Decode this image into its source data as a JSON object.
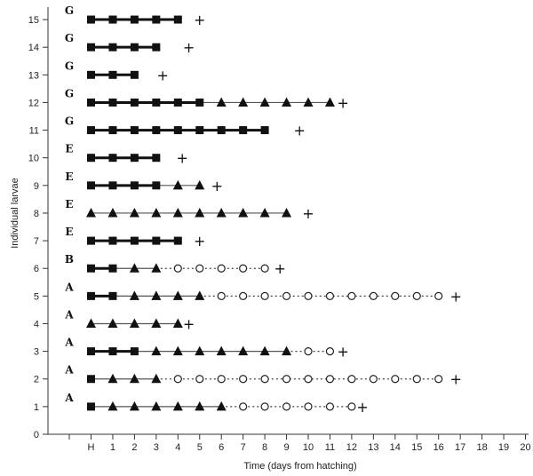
{
  "chart_data": {
    "type": "scatter",
    "title": "",
    "xlabel": "Time (days from hatching)",
    "ylabel": "Individual larvae",
    "xlim": [
      -1,
      20
    ],
    "ylim": [
      0,
      15
    ],
    "x_ticks": [
      {
        "value": 0,
        "label": "H"
      },
      {
        "value": 1,
        "label": "1"
      },
      {
        "value": 2,
        "label": "2"
      },
      {
        "value": 3,
        "label": "3"
      },
      {
        "value": 4,
        "label": "4"
      },
      {
        "value": 5,
        "label": "5"
      },
      {
        "value": 6,
        "label": "6"
      },
      {
        "value": 7,
        "label": "7"
      },
      {
        "value": 8,
        "label": "8"
      },
      {
        "value": 9,
        "label": "9"
      },
      {
        "value": 10,
        "label": "10"
      },
      {
        "value": 11,
        "label": "11"
      },
      {
        "value": 12,
        "label": "12"
      },
      {
        "value": 13,
        "label": "13"
      },
      {
        "value": 14,
        "label": "14"
      },
      {
        "value": 15,
        "label": "15"
      },
      {
        "value": 16,
        "label": "16"
      },
      {
        "value": 17,
        "label": "17"
      },
      {
        "value": 18,
        "label": "18"
      },
      {
        "value": 19,
        "label": "19"
      },
      {
        "value": 20,
        "label": "20"
      }
    ],
    "y_ticks": [
      "0",
      "1",
      "2",
      "3",
      "4",
      "5",
      "6",
      "7",
      "8",
      "9",
      "10",
      "11",
      "12",
      "13",
      "14",
      "15"
    ],
    "death_symbol": "+",
    "grid": false,
    "colors": {
      "marker": "#111111",
      "axis": "#333333",
      "line": "#555555"
    },
    "larvae": [
      {
        "id": 15,
        "group": "G",
        "squares": [
          0,
          1,
          2,
          3,
          4
        ],
        "triangles": [],
        "circles": [],
        "death": 5
      },
      {
        "id": 14,
        "group": "G",
        "squares": [
          0,
          1,
          2,
          3
        ],
        "triangles": [],
        "circles": [],
        "death": 4.5
      },
      {
        "id": 13,
        "group": "G",
        "squares": [
          0,
          1,
          2
        ],
        "triangles": [],
        "circles": [],
        "death": 3.3
      },
      {
        "id": 12,
        "group": "G",
        "squares": [
          0,
          1,
          2,
          3,
          4,
          5
        ],
        "triangles": [
          6,
          7,
          8,
          9,
          10,
          11
        ],
        "circles": [],
        "death": 11.6
      },
      {
        "id": 11,
        "group": "G",
        "squares": [
          0,
          1,
          2,
          3,
          4,
          5,
          6,
          7,
          8
        ],
        "triangles": [],
        "circles": [],
        "death": 9.6
      },
      {
        "id": 10,
        "group": "E",
        "squares": [
          0,
          1,
          2,
          3
        ],
        "triangles": [],
        "circles": [],
        "death": 4.2
      },
      {
        "id": 9,
        "group": "E",
        "squares": [
          0,
          1,
          2,
          3
        ],
        "triangles": [
          4,
          5
        ],
        "circles": [],
        "death": 5.8
      },
      {
        "id": 8,
        "group": "E",
        "squares": [],
        "triangles": [
          0,
          1,
          2,
          3,
          4,
          5,
          6,
          7,
          8,
          9
        ],
        "circles": [],
        "death": 10
      },
      {
        "id": 7,
        "group": "E",
        "squares": [
          0,
          1,
          2,
          3,
          4
        ],
        "triangles": [],
        "circles": [],
        "death": 5
      },
      {
        "id": 6,
        "group": "B",
        "squares": [
          0,
          1
        ],
        "triangles": [
          2,
          3
        ],
        "circles": [
          4,
          5,
          6,
          7,
          8
        ],
        "death": 8.7
      },
      {
        "id": 5,
        "group": "A",
        "squares": [
          0,
          1
        ],
        "triangles": [
          2,
          3,
          4,
          5
        ],
        "circles": [
          6,
          7,
          8,
          9,
          10,
          11,
          12,
          13,
          14,
          15,
          16
        ],
        "death": 16.8
      },
      {
        "id": 4,
        "group": "A",
        "squares": [],
        "triangles": [
          0,
          1,
          2,
          3,
          4
        ],
        "circles": [],
        "death": 4.5
      },
      {
        "id": 3,
        "group": "A",
        "squares": [
          0,
          1,
          2
        ],
        "triangles": [
          3,
          4,
          5,
          6,
          7,
          8,
          9
        ],
        "circles": [
          10,
          11
        ],
        "death": 11.6
      },
      {
        "id": 2,
        "group": "A",
        "squares": [
          0
        ],
        "triangles": [
          1,
          2,
          3
        ],
        "circles": [
          4,
          5,
          6,
          7,
          8,
          9,
          10,
          11,
          12,
          13,
          14,
          15,
          16
        ],
        "death": 16.8
      },
      {
        "id": 1,
        "group": "A",
        "squares": [
          0
        ],
        "triangles": [
          1,
          2,
          3,
          4,
          5,
          6
        ],
        "circles": [
          7,
          8,
          9,
          10,
          11,
          12
        ],
        "death": 12.5
      }
    ]
  }
}
